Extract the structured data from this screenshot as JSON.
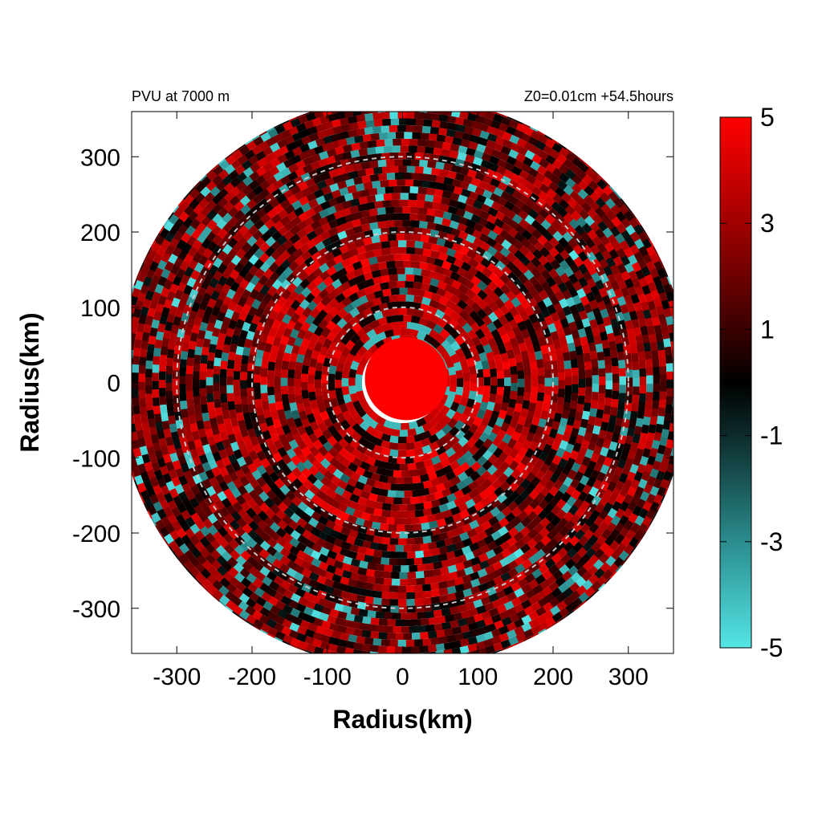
{
  "chart_data": {
    "type": "heatmap",
    "title_left": "PVU at  7000 m",
    "title_right": "Z0=0.01cm  +54.5hours",
    "xlabel": "Radius(km)",
    "ylabel": "Radius(km)",
    "xlim": [
      -360,
      360
    ],
    "ylim": [
      -360,
      360
    ],
    "x_ticks": [
      -300,
      -200,
      -100,
      0,
      100,
      200,
      300
    ],
    "y_ticks": [
      300,
      200,
      100,
      0,
      -100,
      -200,
      -300
    ],
    "x_tick_labels": [
      "-300",
      "-200",
      "-100",
      "0",
      "100",
      "200",
      "300"
    ],
    "y_tick_labels": [
      "300",
      "200",
      "100",
      "0",
      "-100",
      "-200",
      "-300"
    ],
    "domain_radius_km": 380,
    "reference_circles_km": [
      100,
      200,
      300
    ],
    "eye": {
      "center_km": [
        5,
        5
      ],
      "core_radius_km": 55,
      "ring_radius_km": 80
    },
    "colorbar": {
      "range": [
        -5,
        5
      ],
      "ticks": [
        5,
        3,
        1,
        -1,
        -3,
        -5
      ],
      "tick_labels": [
        "5",
        "3",
        "1",
        "-1",
        "-3",
        "-5"
      ],
      "stops": [
        {
          "value": -5,
          "color": "#55e5e6"
        },
        {
          "value": -3,
          "color": "#2a8c8d"
        },
        {
          "value": -1,
          "color": "#0d2b2b"
        },
        {
          "value": 0,
          "color": "#000000"
        },
        {
          "value": 1,
          "color": "#3a0000"
        },
        {
          "value": 3,
          "color": "#a00000"
        },
        {
          "value": 5,
          "color": "#ff0000"
        }
      ]
    },
    "field_description_values": {
      "inner_core_pvu": 5,
      "mid_ring_typical_pvu": 2,
      "outer_typical_pvu": 1,
      "negative_patch_pvu": -4
    }
  }
}
